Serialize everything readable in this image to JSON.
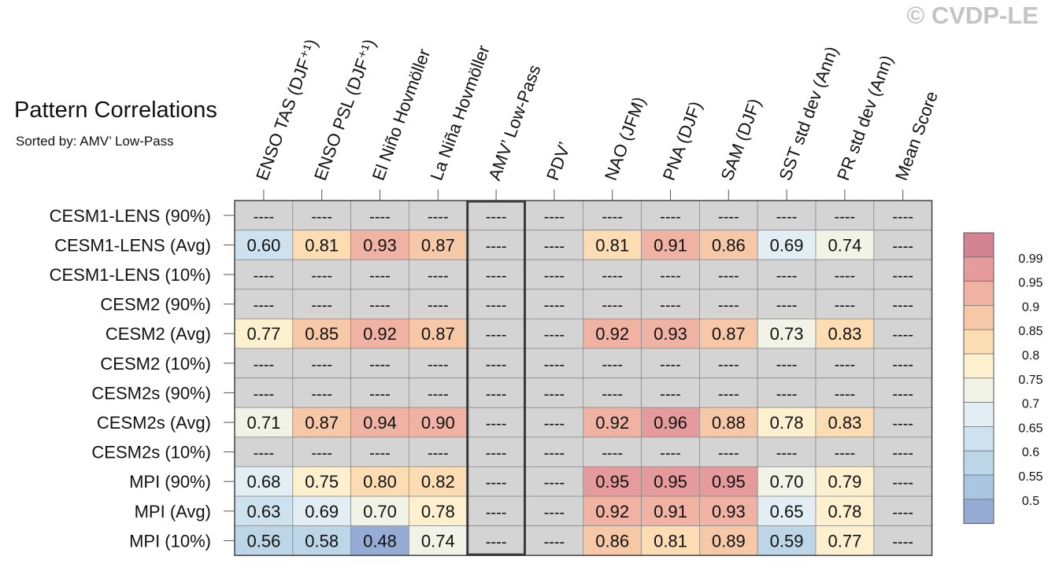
{
  "watermark": "© CVDP-LE",
  "title": "Pattern Correlations",
  "subtitle": "Sorted by: AMV’ Low-Pass",
  "chart_data": {
    "type": "heatmap",
    "columns": [
      "ENSO TAS (DJF⁺¹)",
      "ENSO PSL (DJF⁺¹)",
      "El Niño Hovmöller",
      "La Niña Hovmöller",
      "AMV’ Low-Pass",
      "PDV’",
      "NAO (JFM)",
      "PNA (DJF)",
      "SAM (DJF)",
      "SST std dev (Ann)",
      "PR std dev (Ann)",
      "Mean Score"
    ],
    "rows": [
      "CESM1-LENS (90%)",
      "CESM1-LENS (Avg)",
      "CESM1-LENS (10%)",
      "CESM2 (90%)",
      "CESM2 (Avg)",
      "CESM2 (10%)",
      "CESM2s (90%)",
      "CESM2s (Avg)",
      "CESM2s (10%)",
      "MPI (90%)",
      "MPI (Avg)",
      "MPI (10%)"
    ],
    "missing_label": "----",
    "values": [
      [
        null,
        null,
        null,
        null,
        null,
        null,
        null,
        null,
        null,
        null,
        null,
        null
      ],
      [
        0.6,
        0.81,
        0.93,
        0.87,
        null,
        null,
        0.81,
        0.91,
        0.86,
        0.69,
        0.74,
        null
      ],
      [
        null,
        null,
        null,
        null,
        null,
        null,
        null,
        null,
        null,
        null,
        null,
        null
      ],
      [
        null,
        null,
        null,
        null,
        null,
        null,
        null,
        null,
        null,
        null,
        null,
        null
      ],
      [
        0.77,
        0.85,
        0.92,
        0.87,
        null,
        null,
        0.92,
        0.93,
        0.87,
        0.73,
        0.83,
        null
      ],
      [
        null,
        null,
        null,
        null,
        null,
        null,
        null,
        null,
        null,
        null,
        null,
        null
      ],
      [
        null,
        null,
        null,
        null,
        null,
        null,
        null,
        null,
        null,
        null,
        null,
        null
      ],
      [
        0.71,
        0.87,
        0.94,
        0.9,
        null,
        null,
        0.92,
        0.96,
        0.88,
        0.78,
        0.83,
        null
      ],
      [
        null,
        null,
        null,
        null,
        null,
        null,
        null,
        null,
        null,
        null,
        null,
        null
      ],
      [
        0.68,
        0.75,
        0.8,
        0.82,
        null,
        null,
        0.95,
        0.95,
        0.95,
        0.7,
        0.79,
        null
      ],
      [
        0.63,
        0.69,
        0.7,
        0.78,
        null,
        null,
        0.92,
        0.91,
        0.93,
        0.65,
        0.78,
        null
      ],
      [
        0.56,
        0.58,
        0.48,
        0.74,
        null,
        null,
        0.86,
        0.81,
        0.89,
        0.59,
        0.77,
        null
      ]
    ],
    "highlighted_column": "AMV’ Low-Pass",
    "colorbar": {
      "labels": [
        "0.99",
        "0.95",
        "0.9",
        "0.85",
        "0.8",
        "0.75",
        "0.7",
        "0.65",
        "0.6",
        "0.55",
        "0.5"
      ],
      "bin_colors": [
        "#d48392",
        "#e59a9b",
        "#f0b2a2",
        "#f6c8a7",
        "#fbdcb3",
        "#fdf0cf",
        "#f1f3e6",
        "#e2eef4",
        "#cde2ee",
        "#bcd6e8",
        "#a9c6e0",
        "#97acd4"
      ]
    },
    "missing_color": "#d4d4d4"
  }
}
